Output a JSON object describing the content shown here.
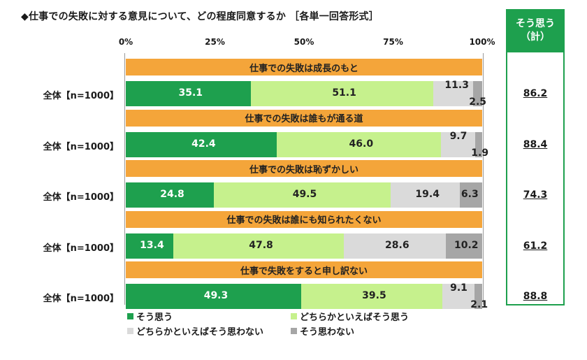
{
  "title": "◆仕事での失敗に対する意見について、どの程度同意するか ［各単一回答形式］",
  "summary_header_line1": "そう思う",
  "summary_header_line2": "（計）",
  "colors": {
    "agree": "#1ea04e",
    "somewhat_agree": "#c6f18d",
    "somewhat_disagree": "#dadada",
    "disagree": "#a6a6a6",
    "band": "#f4a53a",
    "summary": "#1ea04e"
  },
  "chart_data": {
    "type": "bar",
    "orientation": "horizontal",
    "stacked": true,
    "xlim": [
      0,
      100
    ],
    "x_ticks": [
      "0%",
      "25%",
      "50%",
      "75%",
      "100%"
    ],
    "categories": [
      "仕事での失敗は成長のもと",
      "仕事での失敗は誰もが通る道",
      "仕事での失敗は恥ずかしい",
      "仕事での失敗は誰にも知られたくない",
      "仕事で失敗をすると申し訳ない"
    ],
    "row_labels": [
      "全体【n=1000】",
      "全体【n=1000】",
      "全体【n=1000】",
      "全体【n=1000】",
      "全体【n=1000】"
    ],
    "series": [
      {
        "name": "そう思う",
        "values": [
          35.1,
          42.4,
          24.8,
          13.4,
          49.3
        ]
      },
      {
        "name": "どちらかといえばそう思う",
        "values": [
          51.1,
          46.0,
          49.5,
          47.8,
          39.5
        ]
      },
      {
        "name": "どちらかといえばそう思わない",
        "values": [
          11.3,
          9.7,
          19.4,
          28.6,
          9.1
        ]
      },
      {
        "name": "そう思わない",
        "values": [
          2.5,
          1.9,
          6.3,
          10.2,
          2.1
        ]
      }
    ],
    "value_labels": [
      [
        "35.1",
        "51.1",
        "11.3",
        "2.5"
      ],
      [
        "42.4",
        "46.0",
        "9.7",
        "1.9"
      ],
      [
        "24.8",
        "49.5",
        "19.4",
        "6.3"
      ],
      [
        "13.4",
        "47.8",
        "28.6",
        "10.2"
      ],
      [
        "49.3",
        "39.5",
        "9.1",
        "2.1"
      ]
    ],
    "summary_values": [
      "86.2",
      "88.4",
      "74.3",
      "61.2",
      "88.8"
    ],
    "legend_position": "bottom"
  }
}
